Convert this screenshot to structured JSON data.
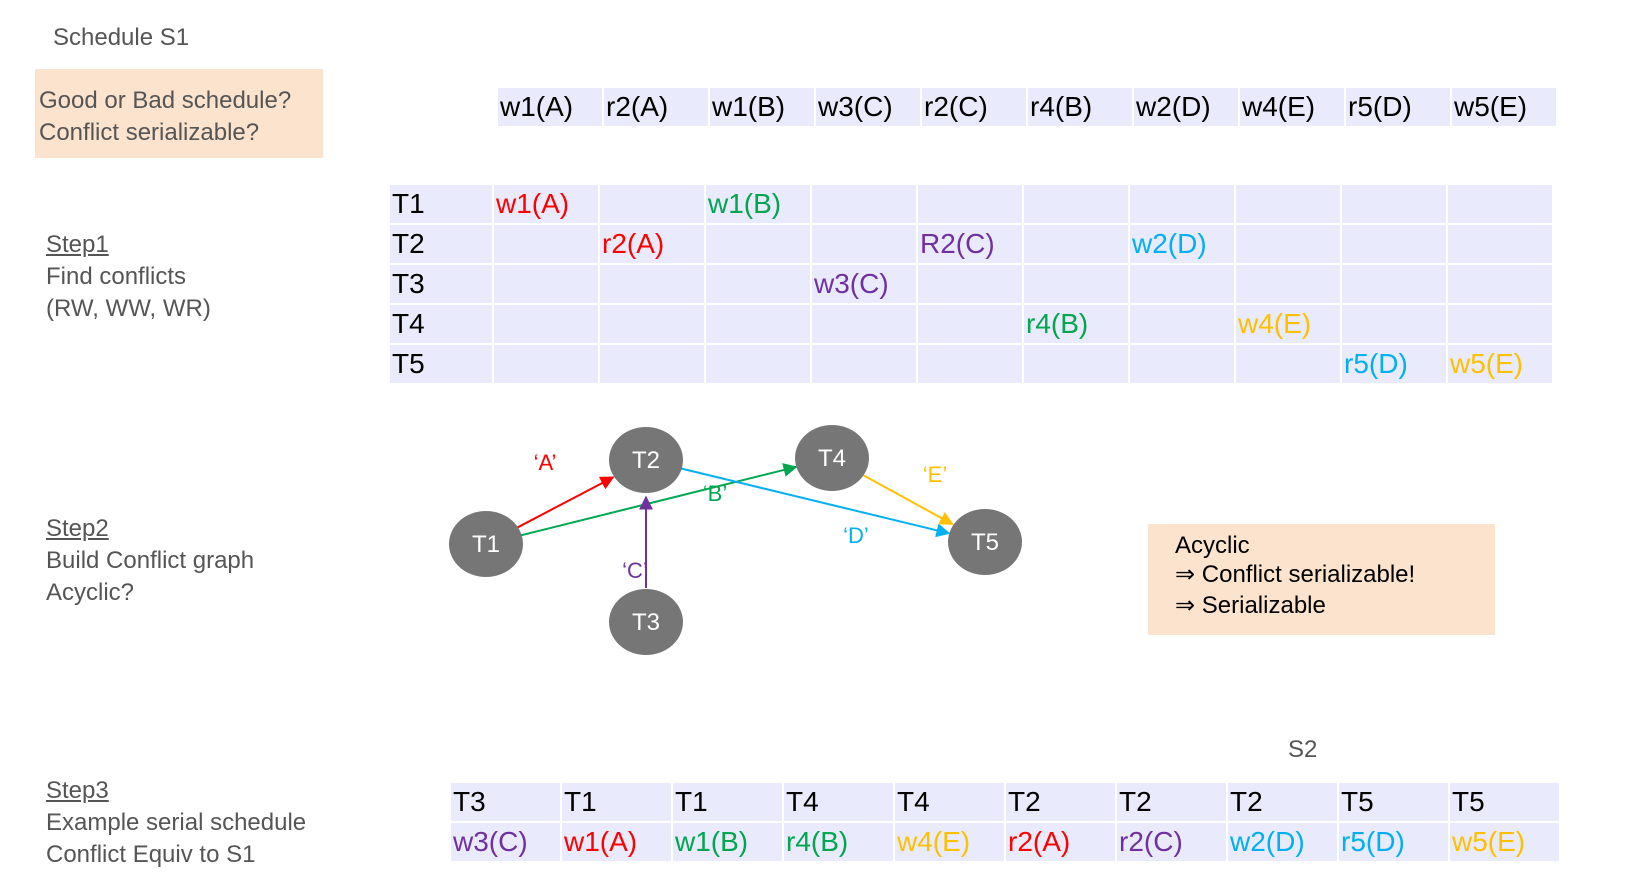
{
  "title": "Schedule S1",
  "question": {
    "line1": "Good or Bad schedule?",
    "line2": "Conflict serializable?"
  },
  "schedule": [
    "w1(A)",
    "r2(A)",
    "w1(B)",
    "w3(C)",
    "r2(C)",
    "r4(B)",
    "w2(D)",
    "w4(E)",
    "r5(D)",
    "w5(E)"
  ],
  "step1": {
    "head": "Step1",
    "line1": "Find conflicts",
    "line2": "(RW, WW, WR)"
  },
  "step2": {
    "head": "Step2",
    "line1": "Build Conflict graph",
    "line2": "Acyclic?"
  },
  "step3": {
    "head": "Step3",
    "line1": "Example serial schedule",
    "line2": "Conflict Equiv to S1"
  },
  "table": {
    "rows": [
      {
        "label": "T1",
        "cells": {
          "0": {
            "text": "w1(A)",
            "color": "#ff0000"
          },
          "2": {
            "text": "w1(B)",
            "color": "#00a650"
          }
        }
      },
      {
        "label": "T2",
        "cells": {
          "1": {
            "text": "r2(A)",
            "color": "#ff0000"
          },
          "4": {
            "text": "R2(C)",
            "color": "#7030a0"
          },
          "6": {
            "text": "w2(D)",
            "color": "#00b0f0"
          }
        }
      },
      {
        "label": "T3",
        "cells": {
          "3": {
            "text": "w3(C)",
            "color": "#7030a0"
          }
        }
      },
      {
        "label": "T4",
        "cells": {
          "5": {
            "text": "r4(B)",
            "color": "#00a650"
          },
          "7": {
            "text": "w4(E)",
            "color": "#ffc000"
          }
        }
      },
      {
        "label": "T5",
        "cells": {
          "8": {
            "text": "r5(D)",
            "color": "#00b0f0"
          },
          "9": {
            "text": "w5(E)",
            "color": "#ffc000"
          }
        }
      }
    ]
  },
  "graph": {
    "nodes": [
      "T1",
      "T2",
      "T3",
      "T4",
      "T5"
    ],
    "edges": [
      {
        "from": "T1",
        "to": "T2",
        "label": "‘A’",
        "color": "#ff0000"
      },
      {
        "from": "T1",
        "to": "T4",
        "label": "‘B’",
        "color": "#00a650"
      },
      {
        "from": "T3",
        "to": "T2",
        "label": "‘C’",
        "color": "#7030a0"
      },
      {
        "from": "T2",
        "to": "T5",
        "label": "‘D’",
        "color": "#00b0f0"
      },
      {
        "from": "T4",
        "to": "T5",
        "label": "‘E’",
        "color": "#ffc000"
      }
    ]
  },
  "conclusion": {
    "line1": "Acyclic",
    "line2": "⇒ Conflict serializable!",
    "line3": "⇒ Serializable"
  },
  "s2_label": "S2",
  "serial": {
    "txns": [
      "T3",
      "T1",
      "T1",
      "T4",
      "T4",
      "T2",
      "T2",
      "T2",
      "T5",
      "T5"
    ],
    "ops": [
      {
        "text": "w3(C)",
        "color": "#7030a0"
      },
      {
        "text": "w1(A)",
        "color": "#ff0000"
      },
      {
        "text": "w1(B)",
        "color": "#00a650"
      },
      {
        "text": "r4(B)",
        "color": "#00a650"
      },
      {
        "text": "w4(E)",
        "color": "#ffc000"
      },
      {
        "text": "r2(A)",
        "color": "#ff0000"
      },
      {
        "text": "r2(C)",
        "color": "#7030a0"
      },
      {
        "text": "w2(D)",
        "color": "#00b0f0"
      },
      {
        "text": "r5(D)",
        "color": "#00b0f0"
      },
      {
        "text": "w5(E)",
        "color": "#ffc000"
      }
    ]
  }
}
